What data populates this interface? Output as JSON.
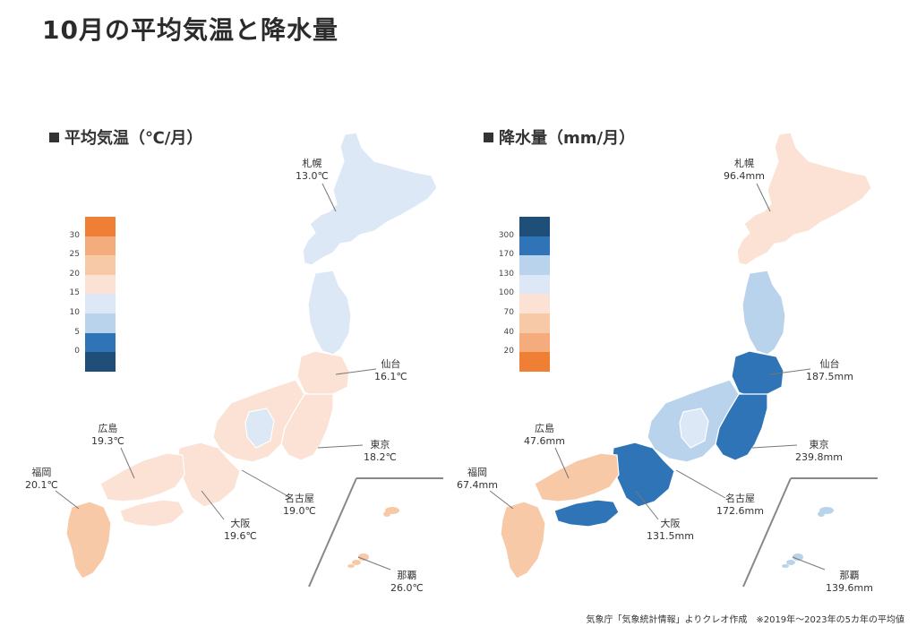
{
  "title": "10月の平均気温と降水量",
  "temperature": {
    "heading": "平均気温（℃/月）",
    "legend_colors": [
      "#ee7f35",
      "#f4ac7d",
      "#f8c9a7",
      "#fbe2d4",
      "#dce8f5",
      "#b9d3ec",
      "#2f74b6",
      "#1f4e79"
    ],
    "legend_labels": [
      "30",
      "25",
      "20",
      "15",
      "10",
      "5",
      "0"
    ],
    "cities": [
      {
        "name": "札幌",
        "value": "13.0℃"
      },
      {
        "name": "仙台",
        "value": "16.1℃"
      },
      {
        "name": "東京",
        "value": "18.2℃"
      },
      {
        "name": "名古屋",
        "value": "19.0℃"
      },
      {
        "name": "大阪",
        "value": "19.6℃"
      },
      {
        "name": "広島",
        "value": "19.3℃"
      },
      {
        "name": "福岡",
        "value": "20.1℃"
      },
      {
        "name": "那覇",
        "value": "26.0℃"
      }
    ]
  },
  "precipitation": {
    "heading": "降水量（mm/月）",
    "legend_colors": [
      "#1f4e79",
      "#2f74b6",
      "#b9d3ec",
      "#dce8f5",
      "#fbe2d4",
      "#f8c9a7",
      "#f4ac7d",
      "#ee7f35"
    ],
    "legend_labels": [
      "300",
      "170",
      "130",
      "100",
      "70",
      "40",
      "20"
    ],
    "cities": [
      {
        "name": "札幌",
        "value": "96.4mm"
      },
      {
        "name": "仙台",
        "value": "187.5mm"
      },
      {
        "name": "東京",
        "value": "239.8mm"
      },
      {
        "name": "名古屋",
        "value": "172.6mm"
      },
      {
        "name": "大阪",
        "value": "131.5mm"
      },
      {
        "name": "広島",
        "value": "47.6mm"
      },
      {
        "name": "福岡",
        "value": "67.4mm"
      },
      {
        "name": "那覇",
        "value": "139.6mm"
      }
    ]
  },
  "region_colors": {
    "temperature": {
      "hokkaido": "#dce8f5",
      "tohoku": "#dce8f5",
      "tohoku_south": "#fbe2d4",
      "kanto": "#fbe2d4",
      "chubu": "#fbe2d4",
      "chubu_mountain": "#dce8f5",
      "kinki": "#fbe2d4",
      "chugoku": "#fbe2d4",
      "shikoku": "#fbe2d4",
      "kyushu": "#f8c9a7",
      "okinawa": "#f8c9a7"
    },
    "precipitation": {
      "hokkaido": "#fbe2d4",
      "tohoku": "#b9d3ec",
      "tohoku_south": "#2f74b6",
      "kanto": "#2f74b6",
      "chubu": "#b9d3ec",
      "chubu_mountain": "#dce8f5",
      "kinki": "#2f74b6",
      "chugoku": "#f8c9a7",
      "shikoku": "#2f74b6",
      "kyushu": "#f8c9a7",
      "okinawa": "#b9d3ec"
    }
  },
  "source": "気象庁「気象統計情報」よりクレオ作成　※2019年～2023年の5カ年の平均値"
}
